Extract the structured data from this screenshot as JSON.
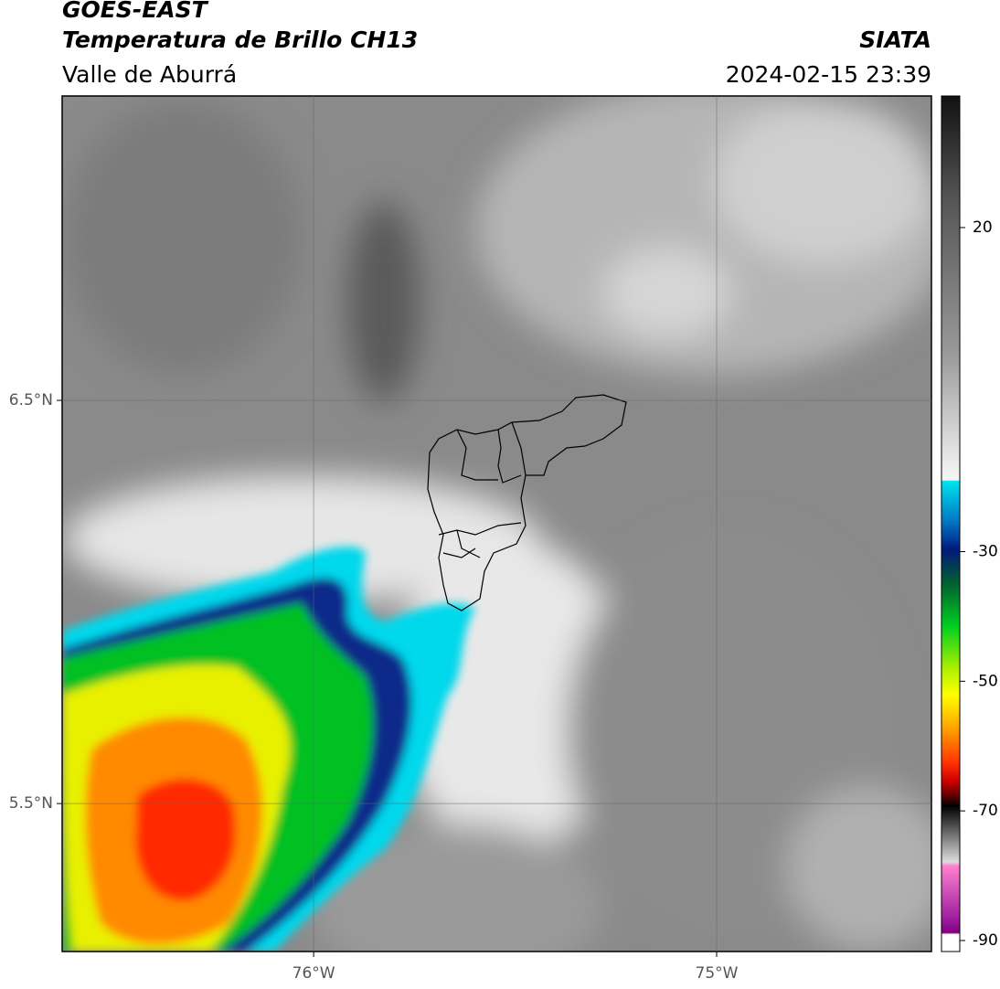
{
  "header": {
    "title": "GOES-EAST",
    "subtitle": "Temperatura de Brillo CH13",
    "region": "Valle de Aburrá",
    "source": "SIATA",
    "datetime": "2024-02-15 23:39"
  },
  "map": {
    "lon_range": [
      -76.624,
      -74.467
    ],
    "lat_range": [
      5.133,
      7.255
    ],
    "lon_ticks": [
      {
        "value": -76,
        "label": "76°W"
      },
      {
        "value": -75,
        "label": "75°W"
      }
    ],
    "lat_ticks": [
      {
        "value": 6.5,
        "label": "6.5°N"
      },
      {
        "value": 5.5,
        "label": "5.5°N"
      }
    ]
  },
  "colorbar": {
    "range": [
      -91.7,
      40.3
    ],
    "ticks": [
      20,
      -30,
      -50,
      -70,
      -90
    ]
  }
}
